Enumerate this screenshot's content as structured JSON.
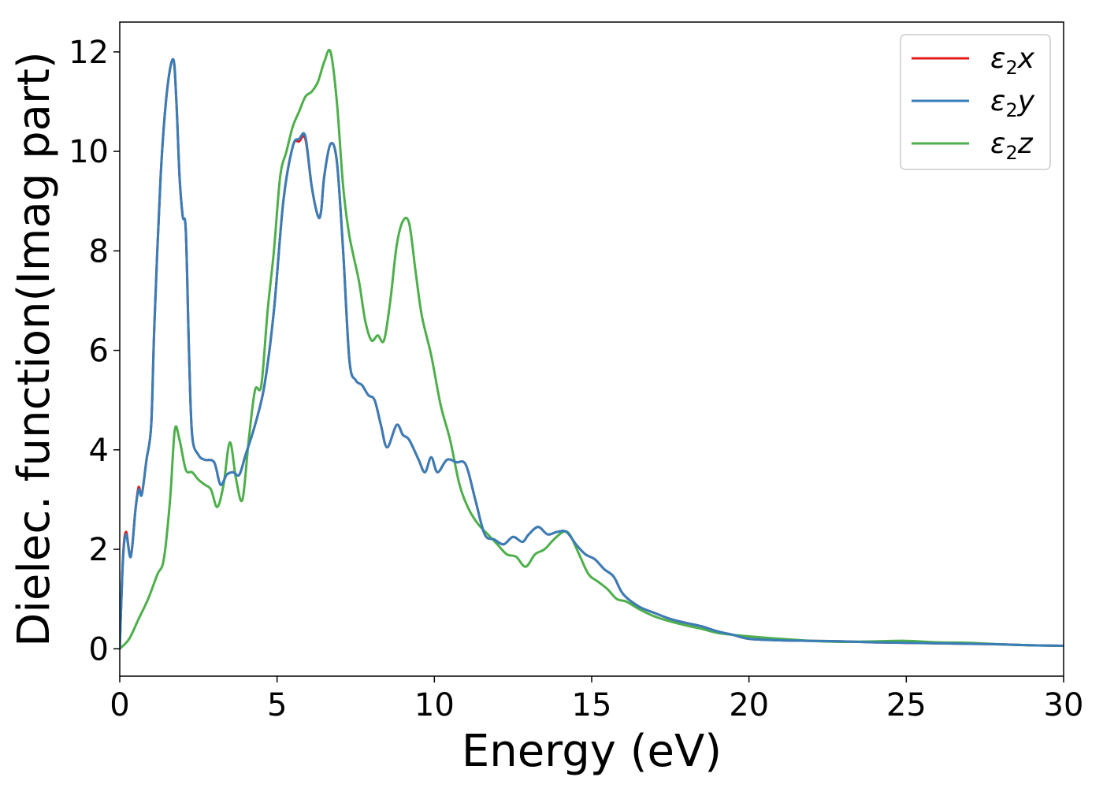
{
  "chart_data": {
    "type": "line",
    "title": "",
    "xlabel": "Energy (eV)",
    "ylabel": "Dielec. function(Imag part)",
    "xlim": [
      0,
      30
    ],
    "ylim": [
      -0.55,
      12.6
    ],
    "xticks": [
      0,
      5,
      10,
      15,
      20,
      25,
      30
    ],
    "xtick_labels": [
      "0",
      "5",
      "10",
      "15",
      "20",
      "25",
      "30"
    ],
    "yticks": [
      0,
      2,
      4,
      6,
      8,
      10,
      12
    ],
    "ytick_labels": [
      "0",
      "2",
      "4",
      "6",
      "8",
      "10",
      "12"
    ],
    "grid": false,
    "legend_position": "top-right",
    "series": [
      {
        "name": "ε2x",
        "legend_main": "ε",
        "legend_sub": "2",
        "legend_tail": "x",
        "color": "#e41a1c",
        "x": [
          0,
          0.1,
          0.2,
          0.35,
          0.5,
          0.6,
          0.7,
          0.85,
          1.0,
          1.1,
          1.3,
          1.5,
          1.7,
          1.8,
          1.9,
          2.0,
          2.1,
          2.2,
          2.3,
          2.5,
          2.7,
          3.0,
          3.2,
          3.4,
          3.6,
          3.8,
          4.0,
          4.3,
          4.6,
          4.9,
          5.2,
          5.5,
          5.7,
          5.9,
          6.1,
          6.3,
          6.4,
          6.5,
          6.7,
          6.9,
          7.1,
          7.3,
          7.5,
          7.7,
          7.9,
          8.1,
          8.3,
          8.5,
          8.8,
          9.0,
          9.2,
          9.5,
          9.7,
          9.9,
          10.1,
          10.4,
          10.7,
          11.0,
          11.3,
          11.6,
          11.9,
          12.2,
          12.5,
          12.8,
          13.0,
          13.3,
          13.6,
          13.9,
          14.2,
          14.5,
          14.8,
          15.1,
          15.4,
          15.7,
          16.0,
          16.5,
          17.0,
          17.5,
          18.0,
          18.5,
          19.0,
          19.5,
          20.0,
          21.0,
          22.0,
          23.0,
          24.0,
          25.0,
          26.0,
          27.0,
          28.0,
          29.0,
          30.0
        ],
        "values": [
          0.0,
          1.8,
          2.35,
          1.85,
          2.8,
          3.25,
          3.1,
          3.8,
          4.5,
          6.5,
          9.5,
          11.2,
          11.85,
          11.0,
          9.5,
          8.7,
          8.4,
          6.0,
          4.3,
          3.9,
          3.8,
          3.75,
          3.3,
          3.5,
          3.55,
          3.5,
          3.9,
          4.5,
          5.3,
          6.8,
          9.0,
          10.1,
          10.2,
          10.25,
          9.3,
          8.7,
          8.8,
          9.5,
          10.15,
          9.8,
          8.0,
          5.8,
          5.4,
          5.3,
          5.1,
          5.0,
          4.5,
          4.05,
          4.5,
          4.3,
          4.2,
          3.8,
          3.55,
          3.85,
          3.55,
          3.8,
          3.75,
          3.7,
          3.0,
          2.3,
          2.2,
          2.1,
          2.25,
          2.15,
          2.3,
          2.45,
          2.3,
          2.35,
          2.35,
          2.1,
          1.9,
          1.8,
          1.6,
          1.45,
          1.1,
          0.85,
          0.72,
          0.6,
          0.52,
          0.45,
          0.35,
          0.28,
          0.2,
          0.17,
          0.16,
          0.15,
          0.13,
          0.12,
          0.11,
          0.1,
          0.09,
          0.07,
          0.06
        ]
      },
      {
        "name": "ε2y",
        "legend_main": "ε",
        "legend_sub": "2",
        "legend_tail": "y",
        "color": "#377eb8",
        "x": [
          0,
          0.1,
          0.2,
          0.35,
          0.5,
          0.6,
          0.7,
          0.85,
          1.0,
          1.1,
          1.3,
          1.5,
          1.7,
          1.8,
          1.9,
          2.0,
          2.1,
          2.2,
          2.3,
          2.5,
          2.7,
          3.0,
          3.2,
          3.4,
          3.6,
          3.8,
          4.0,
          4.3,
          4.6,
          4.9,
          5.2,
          5.5,
          5.7,
          5.9,
          6.1,
          6.3,
          6.4,
          6.5,
          6.7,
          6.9,
          7.1,
          7.3,
          7.5,
          7.7,
          7.9,
          8.1,
          8.3,
          8.5,
          8.8,
          9.0,
          9.2,
          9.5,
          9.7,
          9.9,
          10.1,
          10.4,
          10.7,
          11.0,
          11.3,
          11.6,
          11.9,
          12.2,
          12.5,
          12.8,
          13.0,
          13.3,
          13.6,
          13.9,
          14.2,
          14.5,
          14.8,
          15.1,
          15.4,
          15.7,
          16.0,
          16.5,
          17.0,
          17.5,
          18.0,
          18.5,
          19.0,
          19.5,
          20.0,
          21.0,
          22.0,
          23.0,
          24.0,
          25.0,
          26.0,
          27.0,
          28.0,
          29.0,
          30.0
        ],
        "values": [
          0.0,
          1.75,
          2.3,
          1.85,
          2.8,
          3.2,
          3.1,
          3.8,
          4.5,
          6.5,
          9.5,
          11.2,
          11.85,
          11.0,
          9.5,
          8.7,
          8.4,
          6.0,
          4.3,
          3.9,
          3.8,
          3.75,
          3.3,
          3.5,
          3.55,
          3.5,
          3.9,
          4.5,
          5.3,
          6.8,
          9.0,
          10.1,
          10.25,
          10.3,
          9.3,
          8.7,
          8.8,
          9.5,
          10.15,
          9.8,
          8.0,
          5.8,
          5.4,
          5.3,
          5.1,
          5.0,
          4.5,
          4.05,
          4.5,
          4.3,
          4.2,
          3.8,
          3.55,
          3.85,
          3.55,
          3.8,
          3.75,
          3.7,
          3.0,
          2.3,
          2.2,
          2.1,
          2.25,
          2.15,
          2.3,
          2.45,
          2.3,
          2.35,
          2.35,
          2.1,
          1.9,
          1.8,
          1.6,
          1.45,
          1.1,
          0.85,
          0.72,
          0.6,
          0.52,
          0.45,
          0.35,
          0.28,
          0.2,
          0.17,
          0.16,
          0.15,
          0.13,
          0.12,
          0.11,
          0.1,
          0.09,
          0.07,
          0.06
        ]
      },
      {
        "name": "ε2z",
        "legend_main": "ε",
        "legend_sub": "2",
        "legend_tail": "z",
        "color": "#4daf4a",
        "x": [
          0,
          0.3,
          0.6,
          0.9,
          1.2,
          1.4,
          1.6,
          1.75,
          1.9,
          2.1,
          2.3,
          2.5,
          2.7,
          2.9,
          3.1,
          3.3,
          3.5,
          3.7,
          3.9,
          4.1,
          4.3,
          4.5,
          4.7,
          4.9,
          5.1,
          5.3,
          5.5,
          5.7,
          5.9,
          6.1,
          6.3,
          6.5,
          6.7,
          6.9,
          7.1,
          7.3,
          7.6,
          7.8,
          8.0,
          8.2,
          8.4,
          8.6,
          8.8,
          9.0,
          9.2,
          9.4,
          9.6,
          9.9,
          10.2,
          10.5,
          10.8,
          11.1,
          11.4,
          11.7,
          12.0,
          12.3,
          12.6,
          12.9,
          13.2,
          13.5,
          13.8,
          14.1,
          14.3,
          14.6,
          14.9,
          15.2,
          15.5,
          15.8,
          16.1,
          16.5,
          17.0,
          17.5,
          18.0,
          18.5,
          19.0,
          19.5,
          20.0,
          21.0,
          22.0,
          23.0,
          24.0,
          25.0,
          26.0,
          27.0,
          28.0,
          29.0,
          30.0
        ],
        "values": [
          0.0,
          0.2,
          0.6,
          1.0,
          1.5,
          1.8,
          3.0,
          4.4,
          4.2,
          3.6,
          3.55,
          3.4,
          3.3,
          3.2,
          2.85,
          3.3,
          4.15,
          3.4,
          3.0,
          4.2,
          5.2,
          5.3,
          6.8,
          8.0,
          9.5,
          10.0,
          10.5,
          10.8,
          11.1,
          11.2,
          11.4,
          11.8,
          12.0,
          11.0,
          9.3,
          8.3,
          7.4,
          6.6,
          6.2,
          6.3,
          6.2,
          7.0,
          8.1,
          8.6,
          8.55,
          7.6,
          6.7,
          5.9,
          4.9,
          4.2,
          3.3,
          2.8,
          2.5,
          2.3,
          2.1,
          1.9,
          1.85,
          1.65,
          1.9,
          2.0,
          2.2,
          2.35,
          2.3,
          1.9,
          1.5,
          1.35,
          1.2,
          1.0,
          0.95,
          0.8,
          0.65,
          0.55,
          0.47,
          0.4,
          0.32,
          0.28,
          0.25,
          0.2,
          0.16,
          0.14,
          0.15,
          0.16,
          0.13,
          0.12,
          0.09,
          0.07,
          0.06
        ]
      }
    ]
  }
}
